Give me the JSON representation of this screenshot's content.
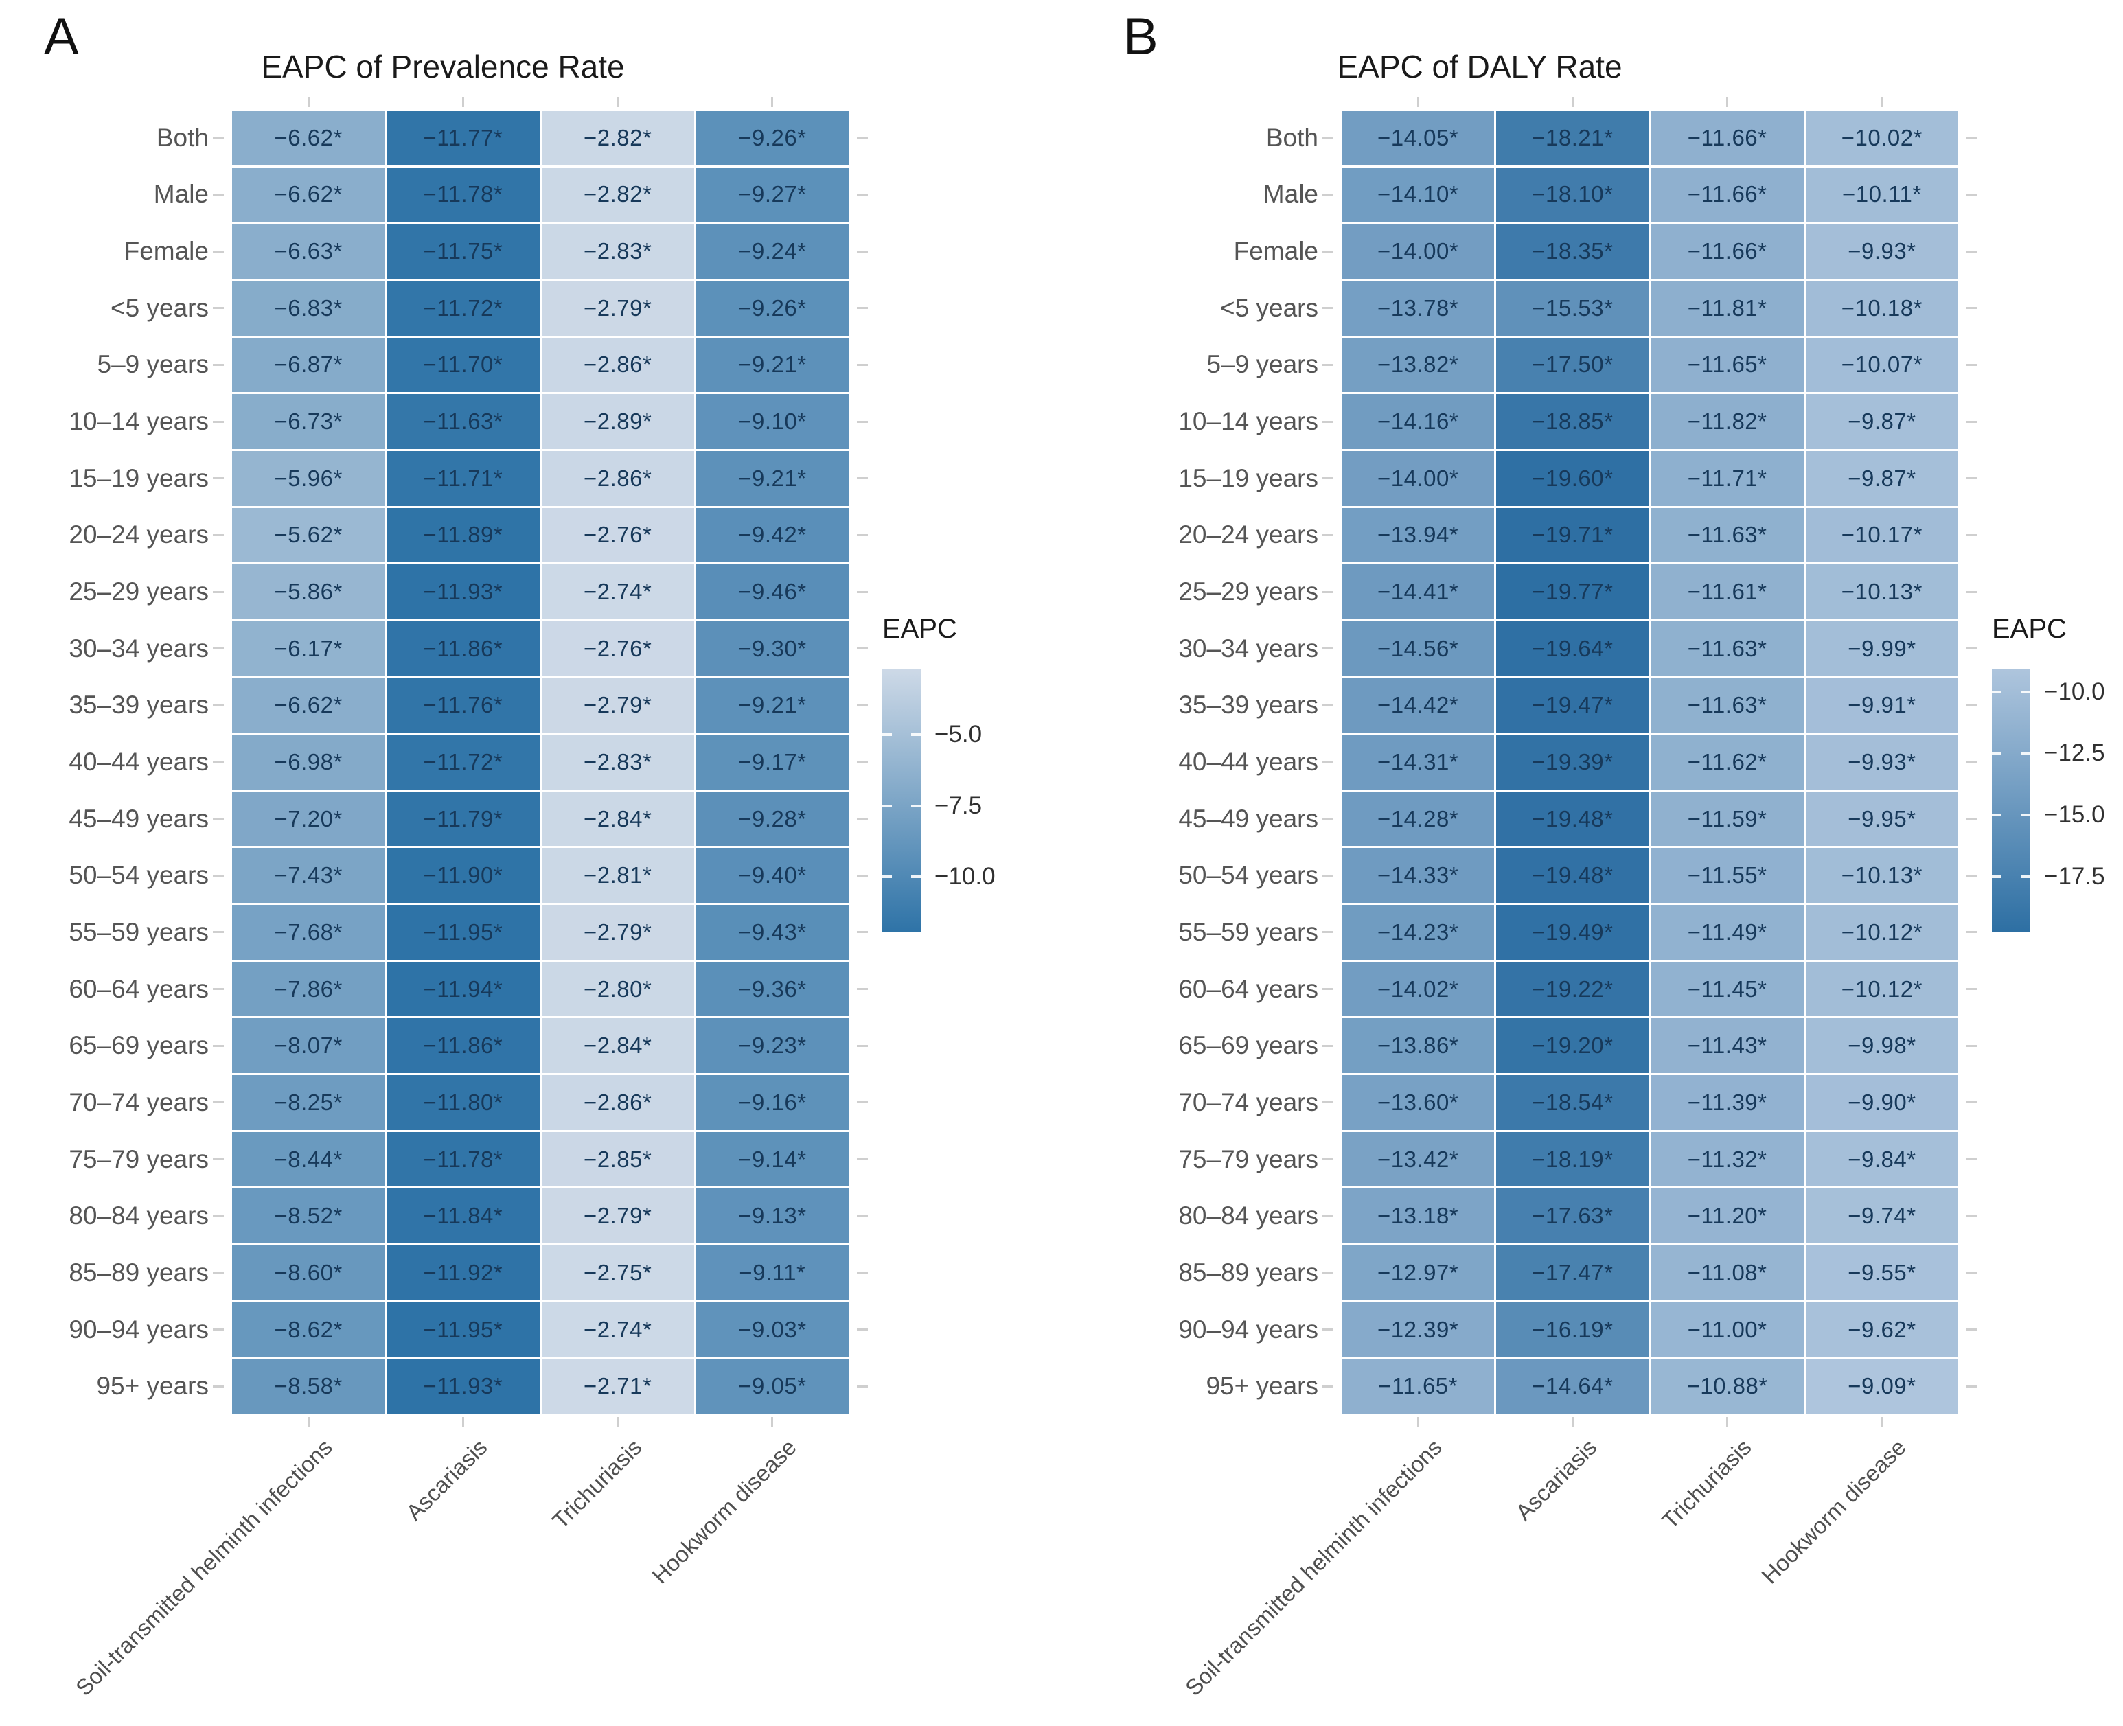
{
  "figure": {
    "panel_a_letter": "A",
    "panel_b_letter": "B",
    "significance_marker": "*"
  },
  "chart_data": [
    {
      "type": "heatmap",
      "panel": "A",
      "title": "EAPC of Prevalence Rate",
      "legend": {
        "title": "EAPC",
        "ticks": [
          -5.0,
          -7.5,
          -10.0
        ],
        "position": "right"
      },
      "color_domain": [
        -11.95,
        -2.71
      ],
      "colors": {
        "light": "#cdd9e7",
        "dark": "#2e73a7"
      },
      "cell_label_suffix": "*",
      "columns": [
        "Soil-transmitted helminth infections",
        "Ascariasis",
        "Trichuriasis",
        "Hookworm disease"
      ],
      "rows": [
        "Both",
        "Male",
        "Female",
        "<5 years",
        "5–9 years",
        "10–14 years",
        "15–19 years",
        "20–24 years",
        "25–29 years",
        "30–34 years",
        "35–39 years",
        "40–44 years",
        "45–49 years",
        "50–54 years",
        "55–59 years",
        "60–64 years",
        "65–69 years",
        "70–74 years",
        "75–79 years",
        "80–84 years",
        "85–89 years",
        "90–94 years",
        "95+ years"
      ],
      "values": [
        [
          -6.62,
          -11.77,
          -2.82,
          -9.26
        ],
        [
          -6.62,
          -11.78,
          -2.82,
          -9.27
        ],
        [
          -6.63,
          -11.75,
          -2.83,
          -9.24
        ],
        [
          -6.83,
          -11.72,
          -2.79,
          -9.26
        ],
        [
          -6.87,
          -11.7,
          -2.86,
          -9.21
        ],
        [
          -6.73,
          -11.63,
          -2.89,
          -9.1
        ],
        [
          -5.96,
          -11.71,
          -2.86,
          -9.21
        ],
        [
          -5.62,
          -11.89,
          -2.76,
          -9.42
        ],
        [
          -5.86,
          -11.93,
          -2.74,
          -9.46
        ],
        [
          -6.17,
          -11.86,
          -2.76,
          -9.3
        ],
        [
          -6.62,
          -11.76,
          -2.79,
          -9.21
        ],
        [
          -6.98,
          -11.72,
          -2.83,
          -9.17
        ],
        [
          -7.2,
          -11.79,
          -2.84,
          -9.28
        ],
        [
          -7.43,
          -11.9,
          -2.81,
          -9.4
        ],
        [
          -7.68,
          -11.95,
          -2.79,
          -9.43
        ],
        [
          -7.86,
          -11.94,
          -2.8,
          -9.36
        ],
        [
          -8.07,
          -11.86,
          -2.84,
          -9.23
        ],
        [
          -8.25,
          -11.8,
          -2.86,
          -9.16
        ],
        [
          -8.44,
          -11.78,
          -2.85,
          -9.14
        ],
        [
          -8.52,
          -11.84,
          -2.79,
          -9.13
        ],
        [
          -8.6,
          -11.92,
          -2.75,
          -9.11
        ],
        [
          -8.62,
          -11.95,
          -2.74,
          -9.03
        ],
        [
          -8.58,
          -11.93,
          -2.71,
          -9.05
        ]
      ]
    },
    {
      "type": "heatmap",
      "panel": "B",
      "title": "EAPC of DALY Rate",
      "legend": {
        "title": "EAPC",
        "ticks": [
          -10.0,
          -12.5,
          -15.0,
          -17.5
        ],
        "position": "right"
      },
      "color_domain": [
        -19.77,
        -9.09
      ],
      "colors": {
        "light": "#aec5dd",
        "dark": "#2d6fa3"
      },
      "cell_label_suffix": "*",
      "columns": [
        "Soil-transmitted helminth infections",
        "Ascariasis",
        "Trichuriasis",
        "Hookworm disease"
      ],
      "rows": [
        "Both",
        "Male",
        "Female",
        "<5 years",
        "5–9 years",
        "10–14 years",
        "15–19 years",
        "20–24 years",
        "25–29 years",
        "30–34 years",
        "35–39 years",
        "40–44 years",
        "45–49 years",
        "50–54 years",
        "55–59 years",
        "60–64 years",
        "65–69 years",
        "70–74 years",
        "75–79 years",
        "80–84 years",
        "85–89 years",
        "90–94 years",
        "95+ years"
      ],
      "values": [
        [
          -14.05,
          -18.21,
          -11.66,
          -10.02
        ],
        [
          -14.1,
          -18.1,
          -11.66,
          -10.11
        ],
        [
          -14.0,
          -18.35,
          -11.66,
          -9.93
        ],
        [
          -13.78,
          -15.53,
          -11.81,
          -10.18
        ],
        [
          -13.82,
          -17.5,
          -11.65,
          -10.07
        ],
        [
          -14.16,
          -18.85,
          -11.82,
          -9.87
        ],
        [
          -14.0,
          -19.6,
          -11.71,
          -9.87
        ],
        [
          -13.94,
          -19.71,
          -11.63,
          -10.17
        ],
        [
          -14.41,
          -19.77,
          -11.61,
          -10.13
        ],
        [
          -14.56,
          -19.64,
          -11.63,
          -9.99
        ],
        [
          -14.42,
          -19.47,
          -11.63,
          -9.91
        ],
        [
          -14.31,
          -19.39,
          -11.62,
          -9.93
        ],
        [
          -14.28,
          -19.48,
          -11.59,
          -9.95
        ],
        [
          -14.33,
          -19.48,
          -11.55,
          -10.13
        ],
        [
          -14.23,
          -19.49,
          -11.49,
          -10.12
        ],
        [
          -14.02,
          -19.22,
          -11.45,
          -10.12
        ],
        [
          -13.86,
          -19.2,
          -11.43,
          -9.98
        ],
        [
          -13.6,
          -18.54,
          -11.39,
          -9.9
        ],
        [
          -13.42,
          -18.19,
          -11.32,
          -9.84
        ],
        [
          -13.18,
          -17.63,
          -11.2,
          -9.74
        ],
        [
          -12.97,
          -17.47,
          -11.08,
          -9.55
        ],
        [
          -12.39,
          -16.19,
          -11.0,
          -9.62
        ],
        [
          -11.65,
          -14.64,
          -10.88,
          -9.09
        ]
      ]
    }
  ]
}
